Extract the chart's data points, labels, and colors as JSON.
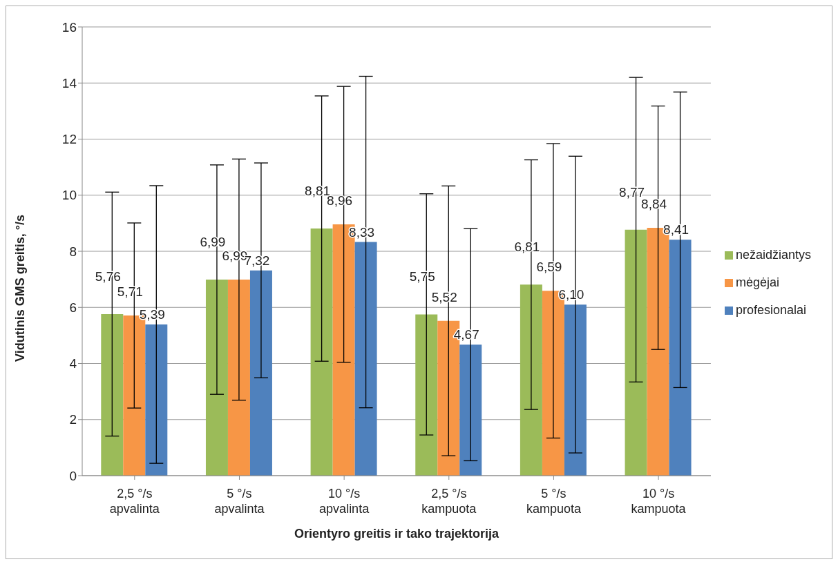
{
  "chart_data": {
    "type": "bar",
    "xlabel": "Orientyro greitis ir tako trajektorija",
    "ylabel": "Vidutinis GMS greitis, °/s",
    "categories": [
      "2,5 °/s apvalinta",
      "5 °/s apvalinta",
      "10 °/s apvalinta",
      "2,5 °/s kampuota",
      "5 °/s kampuota",
      "10 °/s kampuota"
    ],
    "series": [
      {
        "name": "nežaidžiantys",
        "color": "#9bbb59",
        "values": [
          5.76,
          6.99,
          8.81,
          5.75,
          6.81,
          8.77
        ],
        "value_labels": [
          "5,76",
          "6,99",
          "8,81",
          "5,75",
          "6,81",
          "8,77"
        ],
        "errors": [
          4.35,
          4.09,
          4.73,
          4.3,
          4.45,
          5.43
        ]
      },
      {
        "name": "mėgėjai",
        "color": "#f79646",
        "values": [
          5.71,
          6.99,
          8.96,
          5.52,
          6.59,
          8.84
        ],
        "value_labels": [
          "5,71",
          "6,99",
          "8,96",
          "5,52",
          "6,59",
          "8,84"
        ],
        "errors": [
          3.3,
          4.3,
          4.92,
          4.81,
          5.25,
          4.34
        ]
      },
      {
        "name": "profesionalai",
        "color": "#4f81bd",
        "values": [
          5.39,
          7.32,
          8.33,
          4.67,
          6.1,
          8.41
        ],
        "value_labels": [
          "5,39",
          "7,32",
          "8,33",
          "4,67",
          "6,10",
          "8,41"
        ],
        "errors": [
          4.95,
          3.83,
          5.91,
          4.14,
          5.29,
          5.27
        ]
      }
    ],
    "ylim": [
      0,
      16
    ],
    "yticks": [
      0,
      2,
      4,
      6,
      8,
      10,
      12,
      14,
      16
    ],
    "grid": "y",
    "legend": "right"
  }
}
